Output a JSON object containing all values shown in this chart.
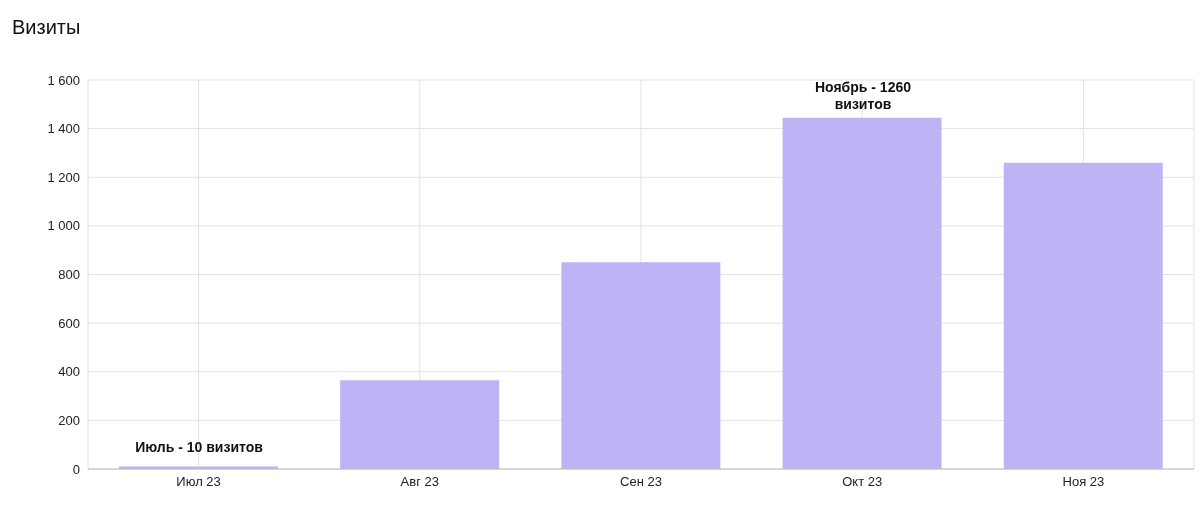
{
  "chart_data": {
    "type": "bar",
    "title": "Визиты",
    "categories": [
      "Июл 23",
      "Авг 23",
      "Сен 23",
      "Окт 23",
      "Ноя 23"
    ],
    "values": [
      10,
      365,
      850,
      1445,
      1260
    ],
    "color": "#c0b3f5",
    "ylim": [
      0,
      1600
    ],
    "yticks": [
      0,
      200,
      400,
      600,
      800,
      {
        "value": 1000,
        "label": "1 000"
      },
      {
        "value": 1200,
        "label": "1 200"
      },
      {
        "value": 1400,
        "label": "1 400"
      },
      {
        "value": 1600,
        "label": "1 600"
      }
    ],
    "grid": true,
    "annotations": [
      "Июль - 10 визитов",
      "Ноябрь - 1260 визитов"
    ]
  }
}
